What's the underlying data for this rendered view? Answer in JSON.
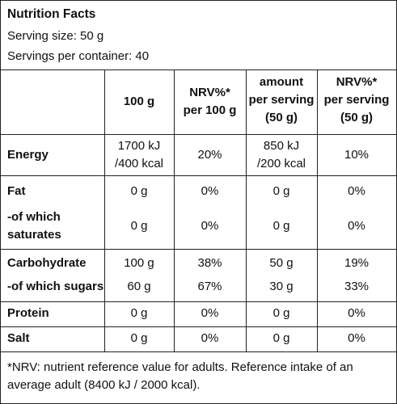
{
  "header": {
    "title": "Nutrition Facts",
    "serving_size": "Serving size: 50 g",
    "servings_per_container": "Servings per container: 40"
  },
  "columns": [
    [
      "100 g"
    ],
    [
      "NRV%*",
      "per 100 g"
    ],
    [
      "amount",
      "per serving",
      "(50 g)"
    ],
    [
      "NRV%*",
      "per serving",
      "(50 g)"
    ]
  ],
  "rows": [
    {
      "label": [
        "Energy"
      ],
      "values": [
        [
          "1700 kJ",
          "/400 kcal"
        ],
        [
          "20%"
        ],
        [
          "850 kJ",
          "/200 kcal"
        ],
        [
          "10%"
        ]
      ]
    },
    {
      "label": [
        "Fat"
      ],
      "values": [
        [
          "0 g"
        ],
        [
          "0%"
        ],
        [
          "0 g"
        ],
        [
          "0%"
        ]
      ]
    },
    {
      "label": [
        "-of which",
        "saturates"
      ],
      "values": [
        [
          "0 g"
        ],
        [
          "0%"
        ],
        [
          "0 g"
        ],
        [
          "0%"
        ]
      ]
    },
    {
      "label": [
        "Carbohydrate"
      ],
      "values": [
        [
          "100 g"
        ],
        [
          "38%"
        ],
        [
          "50 g"
        ],
        [
          "19%"
        ]
      ]
    },
    {
      "label": [
        "-of which sugars"
      ],
      "values": [
        [
          "60 g"
        ],
        [
          "67%"
        ],
        [
          "30 g"
        ],
        [
          "33%"
        ]
      ]
    },
    {
      "label": [
        "Protein"
      ],
      "values": [
        [
          "0 g"
        ],
        [
          "0%"
        ],
        [
          "0 g"
        ],
        [
          "0%"
        ]
      ]
    },
    {
      "label": [
        "Salt"
      ],
      "values": [
        [
          "0 g"
        ],
        [
          "0%"
        ],
        [
          "0 g"
        ],
        [
          "0%"
        ]
      ]
    }
  ],
  "footnote": "*NRV: nutrient reference value for adults. Reference intake of an average adult (8400 kJ / 2000 kcal)."
}
